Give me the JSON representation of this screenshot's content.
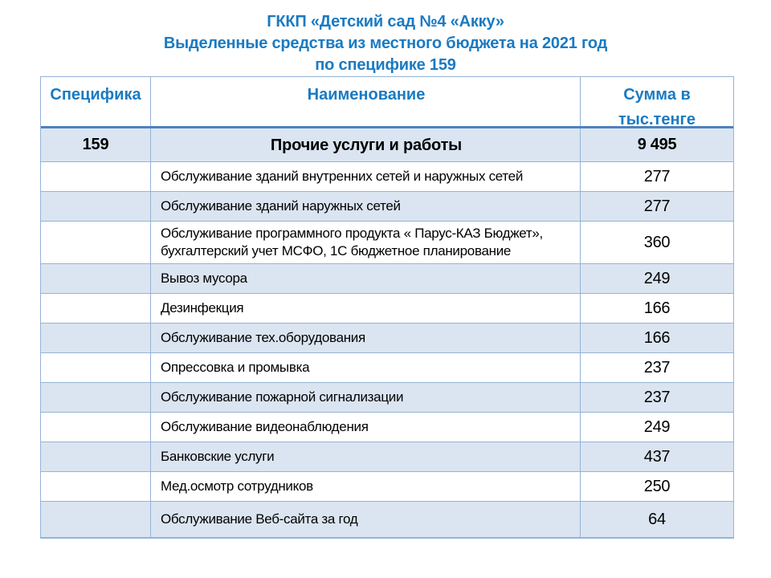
{
  "slide": {
    "title_lines": [
      "ГККП «Детский сад №4 «Акку»",
      "Выделенные средства из местного бюджета на 2021 год",
      "по специфике 159"
    ]
  },
  "colors": {
    "accent_blue": "#1a7ac2",
    "band_fill": "#dbe5f1",
    "border_light": "#95b3d7",
    "border_heavy": "#4f81bd",
    "text_black": "#000000"
  },
  "table": {
    "columns": [
      {
        "label": "Специфика"
      },
      {
        "label": "Наименование"
      },
      {
        "label": "Сумма в\nтыс.тенге"
      }
    ],
    "rows": [
      {
        "spec": "159",
        "name": "Прочие услуги и работы",
        "amount": "9 495",
        "total": true
      },
      {
        "spec": "",
        "name": "Обслуживание зданий внутренних сетей и наружных сетей",
        "amount": "277"
      },
      {
        "spec": "",
        "name": "Обслуживание зданий наружных сетей",
        "amount": "277"
      },
      {
        "spec": "",
        "name": "Обслуживание программного продукта « Парус-КАЗ Бюджет»,\nбухгалтерский учет МСФО, 1С бюджетное планирование",
        "amount": "360"
      },
      {
        "spec": "",
        "name": "Вывоз мусора",
        "amount": "249"
      },
      {
        "spec": "",
        "name": "Дезинфекция",
        "amount": "166"
      },
      {
        "spec": "",
        "name": "Обслуживание тех.оборудования",
        "amount": "166"
      },
      {
        "spec": "",
        "name": "Опрессовка и промывка",
        "amount": "237"
      },
      {
        "spec": "",
        "name": "Обслуживание пожарной сигнализации",
        "amount": "237"
      },
      {
        "spec": "",
        "name": "Обслуживание видеонаблюдения",
        "amount": "249"
      },
      {
        "spec": "",
        "name": "Банковские услуги",
        "amount": "437"
      },
      {
        "spec": "",
        "name": "Мед.осмотр сотрудников",
        "amount": "250"
      },
      {
        "spec": "",
        "name": "Обслуживание Веб-сайта за год",
        "amount": "64"
      }
    ]
  }
}
